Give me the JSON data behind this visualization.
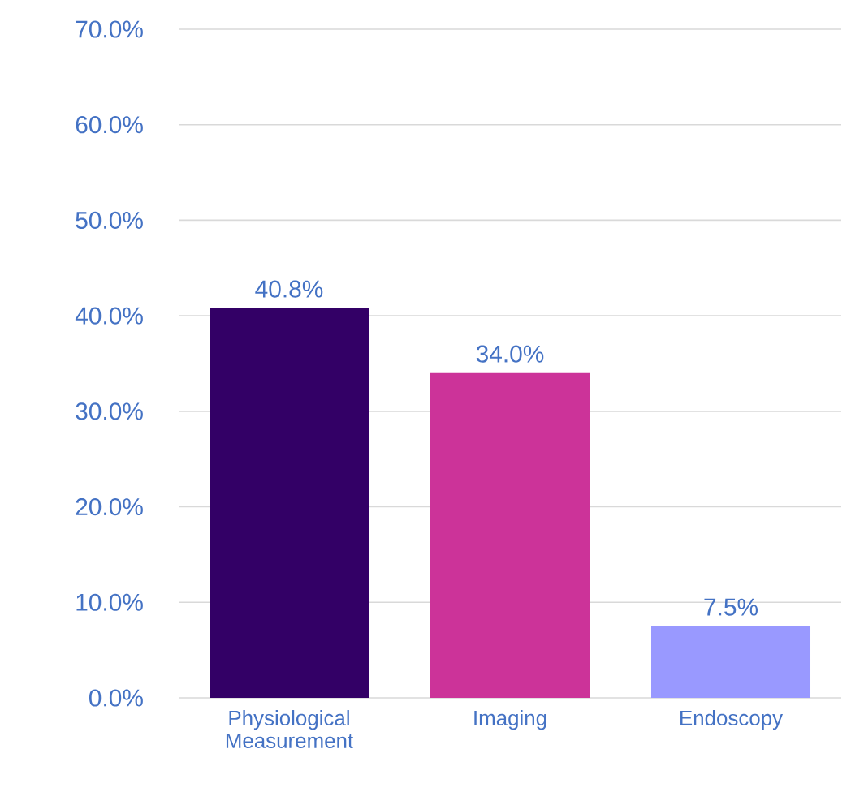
{
  "chart_data": {
    "type": "bar",
    "categories": [
      "Physiological Measurement",
      "Imaging",
      "Endoscopy"
    ],
    "values": [
      40.8,
      34.0,
      7.5
    ],
    "colors": [
      "#330066",
      "#cc3399",
      "#9999ff"
    ],
    "value_labels": [
      "40.8%",
      "34.0%",
      "7.5%"
    ],
    "ylim": [
      0,
      70
    ],
    "yticks": [
      {
        "value": 0,
        "label": "0.0%"
      },
      {
        "value": 10,
        "label": "10.0%"
      },
      {
        "value": 20,
        "label": "20.0%"
      },
      {
        "value": 30,
        "label": "30.0%"
      },
      {
        "value": 40,
        "label": "40.0%"
      },
      {
        "value": 50,
        "label": "50.0%"
      },
      {
        "value": 60,
        "label": "60.0%"
      },
      {
        "value": 70,
        "label": "70.0%"
      }
    ],
    "grid": "y"
  }
}
